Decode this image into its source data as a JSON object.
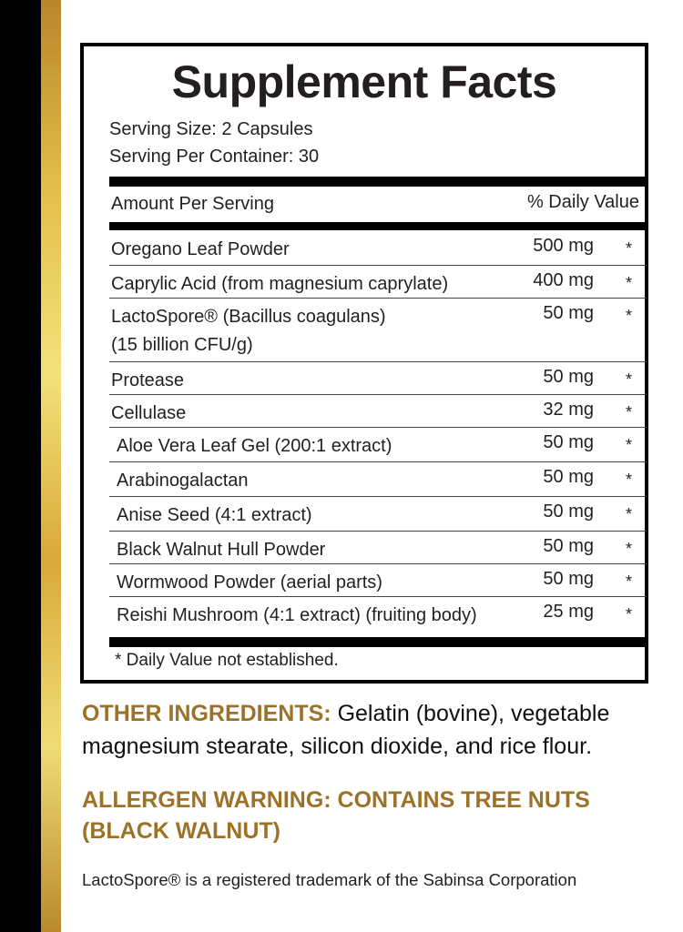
{
  "colors": {
    "gold_text": "#9c7228",
    "stripe_black": "#000000",
    "stripe_gold": "#e3bd4a"
  },
  "facts": {
    "title": "Supplement Facts",
    "serving_size": "Serving Size: 2 Capsules",
    "servings_per_container": "Serving Per Container: 30",
    "amount_header": "Amount Per Serving",
    "dv_header": "% Daily Value",
    "rows": [
      {
        "name": "Oregano Leaf Powder",
        "amount": "500 mg",
        "dv": "*"
      },
      {
        "name": "Caprylic Acid (from magnesium caprylate)",
        "amount": "400 mg",
        "dv": "*"
      },
      {
        "name": "LactoSpore® (Bacillus coagulans)",
        "name2": "(15 billion CFU/g)",
        "amount": "50 mg",
        "dv": "*"
      },
      {
        "name": "Protease",
        "amount": "50 mg",
        "dv": "*"
      },
      {
        "name": "Cellulase",
        "amount": "32 mg",
        "dv": "*"
      },
      {
        "name": "Aloe Vera Leaf Gel (200:1 extract)",
        "amount": "50 mg",
        "dv": "*"
      },
      {
        "name": "Arabinogalactan",
        "amount": "50 mg",
        "dv": "*"
      },
      {
        "name": "Anise Seed (4:1 extract)",
        "amount": "50 mg",
        "dv": "*"
      },
      {
        "name": "Black Walnut Hull Powder",
        "amount": "50 mg",
        "dv": "*"
      },
      {
        "name": "Wormwood Powder (aerial parts)",
        "amount": "50 mg",
        "dv": "*"
      },
      {
        "name": "Reishi Mushroom (4:1 extract) (fruiting body)",
        "amount": "25 mg",
        "dv": "*"
      }
    ],
    "footnote": "* Daily Value not established."
  },
  "other": {
    "label": "OTHER INGREDIENTS:",
    "text": " Gelatin (bovine), vegetable magnesium stearate, silicon dioxide, and rice flour."
  },
  "allergen": "ALLERGEN WARNING: CONTAINS TREE NUTS (BLACK WALNUT)",
  "trademark": "LactoSpore® is a registered trademark of the Sabinsa Corporation"
}
